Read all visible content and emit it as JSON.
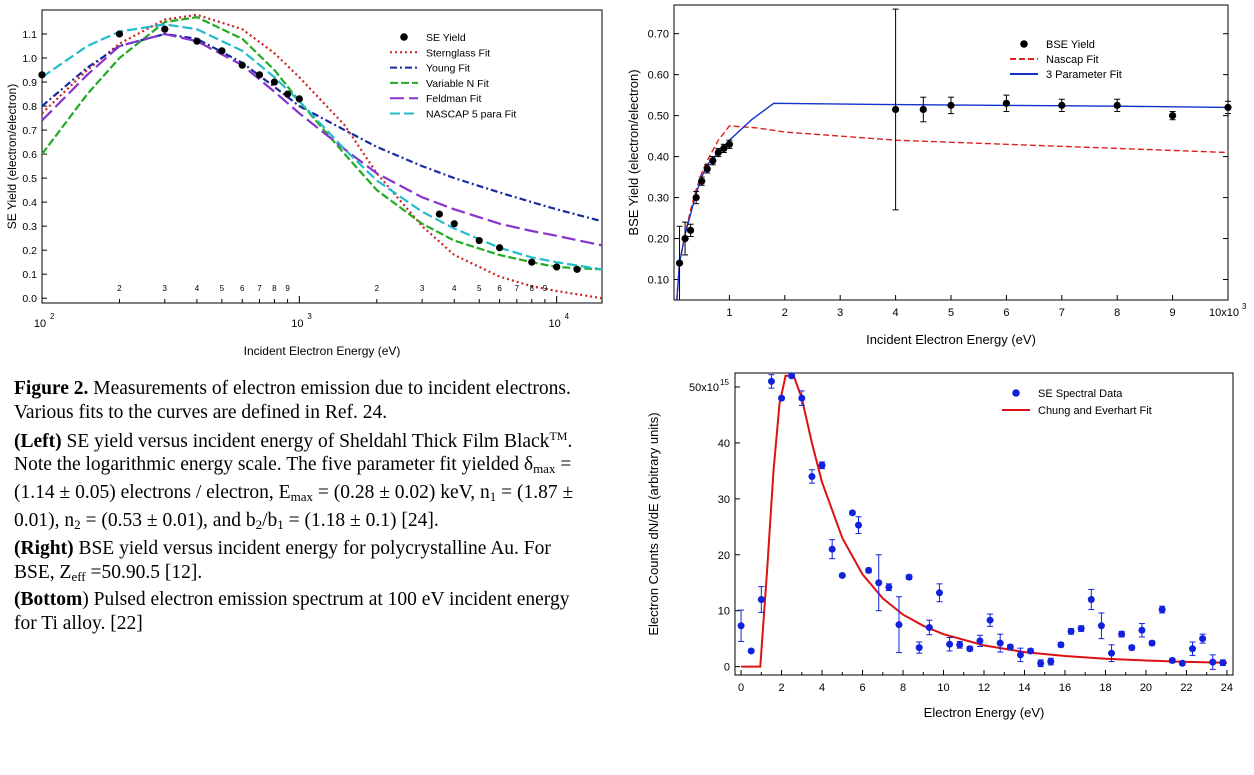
{
  "caption": {
    "figure_label": "Figure 2.",
    "intro": " Measurements of electron emission due to incident electrons.  Various fits to the curves are defined in Ref. 24.",
    "left_label": "(Left)",
    "left_text_1": "  SE yield versus incident energy of Sheldahl Thick Film Black",
    "left_tm": "TM",
    "left_text_2": ".  Note  the logarithmic energy scale. The five parameter fit yielded  δ",
    "left_sub_max": "max",
    "left_text_3": " = (1.14 ± 0.05) electrons / electron, E",
    "left_sub_emax": "max",
    "left_text_4": " = (0.28 ± 0.02) keV, n",
    "left_sub_1": "1",
    "left_text_5": " =  (1.87 ± 0.01),  n",
    "left_sub_2": "2",
    "left_text_6": " =  (0.53 ± 0.01), and b",
    "left_sub_b2": "2",
    "left_text_7": "/b",
    "left_sub_b1": "1",
    "left_text_8": " = (1.18 ± 0.1) [24].",
    "right_label": "(Right)",
    "right_text_1": "  BSE yield versus incident energy for polycrystalline Au.  For BSE, Z",
    "right_sub_eff": "eff",
    "right_text_2": " =50.90.5 [12].",
    "bottom_label": "(Bottom",
    "bottom_text": ") Pulsed electron emission spectrum at 100 eV incident energy for Ti alloy.  [22]"
  },
  "chart_data": [
    {
      "id": "se-yield",
      "type": "scatter",
      "xscale": "log",
      "xlabel": "Incident Electron Energy (eV)",
      "ylabel": "SE Yield (electron/electron)",
      "xlim": [
        100,
        15000
      ],
      "ylim": [
        -0.02,
        1.2
      ],
      "yticks": [
        "0.0",
        "0.1",
        "0.2",
        "0.3",
        "0.4",
        "0.5",
        "0.6",
        "0.7",
        "0.8",
        "0.9",
        "1.0",
        "1.1"
      ],
      "legend_position": "top-right",
      "series": [
        {
          "name": "SE Yield",
          "kind": "points",
          "color": "#000000",
          "x": [
            100,
            200,
            300,
            400,
            500,
            600,
            700,
            800,
            900,
            1000,
            3500,
            4000,
            5000,
            6000,
            8000,
            10000,
            12000
          ],
          "y": [
            0.93,
            1.1,
            1.12,
            1.07,
            1.03,
            0.97,
            0.93,
            0.9,
            0.85,
            0.83,
            0.35,
            0.31,
            0.24,
            0.21,
            0.15,
            0.13,
            0.12
          ]
        },
        {
          "name": "Sternglass Fit",
          "kind": "line",
          "color": "#cc2222",
          "dash": "2,3",
          "x": [
            100,
            150,
            200,
            300,
            400,
            600,
            800,
            1000,
            1500,
            2000,
            3000,
            4000,
            6000,
            8000,
            10000,
            15000
          ],
          "y": [
            0.77,
            0.95,
            1.06,
            1.16,
            1.18,
            1.12,
            1.02,
            0.92,
            0.72,
            0.52,
            0.3,
            0.18,
            0.09,
            0.05,
            0.03,
            0.0
          ]
        },
        {
          "name": "Young Fit",
          "kind": "line",
          "color": "#1a2aa0",
          "dash": "7,3,2,3",
          "x": [
            100,
            150,
            200,
            300,
            400,
            600,
            800,
            1000,
            1500,
            2000,
            3000,
            4000,
            6000,
            8000,
            10000,
            15000
          ],
          "y": [
            0.8,
            0.96,
            1.05,
            1.1,
            1.08,
            0.98,
            0.88,
            0.8,
            0.7,
            0.63,
            0.55,
            0.5,
            0.44,
            0.4,
            0.37,
            0.32
          ]
        },
        {
          "name": "Variable N Fit",
          "kind": "line",
          "color": "#22aa22",
          "dash": "8,3",
          "x": [
            100,
            150,
            200,
            300,
            400,
            600,
            800,
            1000,
            1500,
            2000,
            3000,
            4000,
            6000,
            8000,
            10000,
            15000
          ],
          "y": [
            0.6,
            0.85,
            1.0,
            1.15,
            1.17,
            1.08,
            0.95,
            0.82,
            0.6,
            0.45,
            0.31,
            0.24,
            0.18,
            0.15,
            0.13,
            0.12
          ]
        },
        {
          "name": "Feldman Fit",
          "kind": "line",
          "color": "#8833cc",
          "dash": "14,5",
          "x": [
            100,
            150,
            200,
            300,
            400,
            600,
            800,
            1000,
            1500,
            2000,
            3000,
            4000,
            6000,
            8000,
            10000,
            15000
          ],
          "y": [
            0.74,
            0.93,
            1.05,
            1.1,
            1.07,
            0.97,
            0.86,
            0.77,
            0.62,
            0.52,
            0.42,
            0.37,
            0.31,
            0.28,
            0.26,
            0.22
          ]
        },
        {
          "name": "NASCAP 5 para Fit",
          "kind": "line",
          "color": "#22bbcc",
          "dash": "10,4",
          "x": [
            100,
            150,
            200,
            300,
            400,
            600,
            800,
            1000,
            1500,
            2000,
            3000,
            4000,
            6000,
            8000,
            10000,
            15000
          ],
          "y": [
            0.92,
            1.05,
            1.11,
            1.14,
            1.12,
            1.03,
            0.92,
            0.82,
            0.62,
            0.49,
            0.36,
            0.29,
            0.21,
            0.17,
            0.15,
            0.12
          ]
        }
      ]
    },
    {
      "id": "bse-yield",
      "type": "scatter",
      "xlabel": "Incident Electron Energy (eV)",
      "ylabel": "BSE Yield (electron/electron)",
      "xlim": [
        0,
        10000
      ],
      "ylim": [
        0.05,
        0.77
      ],
      "xticks": [
        "1",
        "2",
        "3",
        "4",
        "5",
        "6",
        "7",
        "8",
        "9"
      ],
      "xtick_values": [
        1000,
        2000,
        3000,
        4000,
        5000,
        6000,
        7000,
        8000,
        9000
      ],
      "xtick_last": "10x10",
      "xtick_last_exp": "3",
      "yticks": [
        "0.10",
        "0.20",
        "0.30",
        "0.40",
        "0.50",
        "0.60",
        "0.70"
      ],
      "ytick_values": [
        0.1,
        0.2,
        0.3,
        0.4,
        0.5,
        0.6,
        0.7
      ],
      "legend_position": "top-right",
      "series": [
        {
          "name": "BSE Yield",
          "kind": "points",
          "color": "#000000",
          "x": [
            100,
            200,
            300,
            400,
            500,
            600,
            700,
            800,
            900,
            1000,
            4000,
            4500,
            5000,
            6000,
            7000,
            8000,
            9000,
            10000
          ],
          "y": [
            0.14,
            0.2,
            0.22,
            0.3,
            0.34,
            0.37,
            0.39,
            0.41,
            0.42,
            0.43,
            0.515,
            0.515,
            0.525,
            0.53,
            0.525,
            0.525,
            0.5,
            0.52
          ],
          "err": [
            0.09,
            0.04,
            0.015,
            0.015,
            0.01,
            0.01,
            0.01,
            0.01,
            0.01,
            0.01,
            0.245,
            0.03,
            0.02,
            0.02,
            0.015,
            0.015,
            0.01,
            0.015
          ]
        },
        {
          "name": "Nascap Fit",
          "kind": "line",
          "color": "#dd2222",
          "dash": "6,3",
          "x": [
            50,
            100,
            200,
            300,
            400,
            500,
            600,
            800,
            1000,
            1500,
            2000,
            4000,
            6000,
            8000,
            10000
          ],
          "y": [
            0.05,
            0.14,
            0.21,
            0.27,
            0.32,
            0.36,
            0.39,
            0.44,
            0.475,
            0.47,
            0.46,
            0.44,
            0.43,
            0.42,
            0.41
          ]
        },
        {
          "name": "3 Parameter Fit",
          "kind": "line",
          "color": "#1133cc",
          "dash": "",
          "x": [
            50,
            100,
            200,
            300,
            400,
            500,
            600,
            800,
            1000,
            1400,
            1800,
            4000,
            6000,
            8000,
            10000
          ],
          "y": [
            0.05,
            0.14,
            0.21,
            0.26,
            0.31,
            0.35,
            0.38,
            0.41,
            0.44,
            0.49,
            0.53,
            0.527,
            0.525,
            0.523,
            0.52
          ]
        }
      ]
    },
    {
      "id": "se-spectrum",
      "type": "scatter",
      "xlabel": "Electron Energy (eV)",
      "ylabel": "Electron Counts dN/dE (arbitrary units)",
      "xlim": [
        -0.3,
        24.3
      ],
      "ylim": [
        -1.5,
        52.5
      ],
      "xticks": [
        "0",
        "2",
        "4",
        "6",
        "8",
        "10",
        "12",
        "14",
        "16",
        "18",
        "20",
        "22",
        "24"
      ],
      "xtick_values": [
        0,
        2,
        4,
        6,
        8,
        10,
        12,
        14,
        16,
        18,
        20,
        22,
        24
      ],
      "yticks": [
        "0",
        "10",
        "20",
        "30",
        "40"
      ],
      "ytick_values": [
        0,
        10,
        20,
        30,
        40
      ],
      "ytick_top": "50x10",
      "ytick_top_exp": "15",
      "legend_position": "top-right",
      "series": [
        {
          "name": "SE Spectral Data",
          "kind": "points",
          "color": "#1122dd",
          "x": [
            0,
            0.5,
            1,
            1.5,
            2,
            2.5,
            3,
            3.5,
            4,
            4.5,
            5,
            5.5,
            5.8,
            6.3,
            6.8,
            7.3,
            7.8,
            8.3,
            8.8,
            9.3,
            9.8,
            10.3,
            10.8,
            11.3,
            11.8,
            12.3,
            12.8,
            13.3,
            13.8,
            14.3,
            14.8,
            15.3,
            15.8,
            16.3,
            16.8,
            17.3,
            17.8,
            18.3,
            18.8,
            19.3,
            19.8,
            20.3,
            20.8,
            21.3,
            21.8,
            22.3,
            22.8,
            23.3,
            23.8
          ],
          "y": [
            7.3,
            2.8,
            12,
            51,
            48,
            52,
            48,
            34,
            36,
            21,
            16.3,
            27.5,
            25.3,
            17.2,
            15,
            14.2,
            7.5,
            16,
            3.4,
            7,
            13.2,
            4,
            3.9,
            3.2,
            4.6,
            8.3,
            4.2,
            3.5,
            2.1,
            2.8,
            0.6,
            0.9,
            3.9,
            6.3,
            6.8,
            12,
            7.3,
            2.4,
            5.8,
            3.4,
            6.5,
            4.2,
            10.2,
            1.1,
            0.6,
            3.2,
            5,
            0.8,
            0.7
          ],
          "err": [
            2.8,
            0.3,
            2.3,
            1.2,
            0.3,
            0.4,
            1.3,
            1.2,
            0.6,
            1.7,
            0.3,
            0.3,
            1.5,
            0.4,
            5,
            0.6,
            5,
            0.4,
            1,
            1.3,
            1.6,
            1.2,
            0.6,
            0.4,
            1,
            1.1,
            1.6,
            0.4,
            1.2,
            0.4,
            0.6,
            0.6,
            0.4,
            0.5,
            0.5,
            1.8,
            2.3,
            1.5,
            0.5,
            0.4,
            1.2,
            0.4,
            0.6,
            0.4,
            0.3,
            1.2,
            0.8,
            1.3,
            0.5
          ]
        },
        {
          "name": "Chung and Everhart Fit",
          "kind": "line",
          "color": "#dd1111",
          "dash": "",
          "x": [
            0,
            0.95,
            1.3,
            1.6,
            1.9,
            2.2,
            2.6,
            3,
            3.5,
            4,
            5,
            6,
            7,
            8,
            9,
            10,
            12,
            14,
            16,
            18,
            20,
            22,
            24
          ],
          "y": [
            0,
            0,
            18,
            35,
            47,
            52,
            52,
            48,
            40,
            33,
            23,
            16.5,
            12.2,
            9.3,
            7.3,
            5.8,
            3.8,
            2.6,
            1.9,
            1.4,
            1.1,
            0.85,
            0.7
          ]
        }
      ]
    }
  ],
  "left_axis": {
    "major_ticks": [
      "10",
      "10",
      "10"
    ],
    "major_exps": [
      "2",
      "3",
      "4"
    ],
    "minor_labels": [
      "2",
      "3",
      "4",
      "5",
      "6",
      "7",
      "8",
      "9",
      "2",
      "3",
      "4",
      "5",
      "6",
      "7",
      "8",
      "9"
    ]
  }
}
